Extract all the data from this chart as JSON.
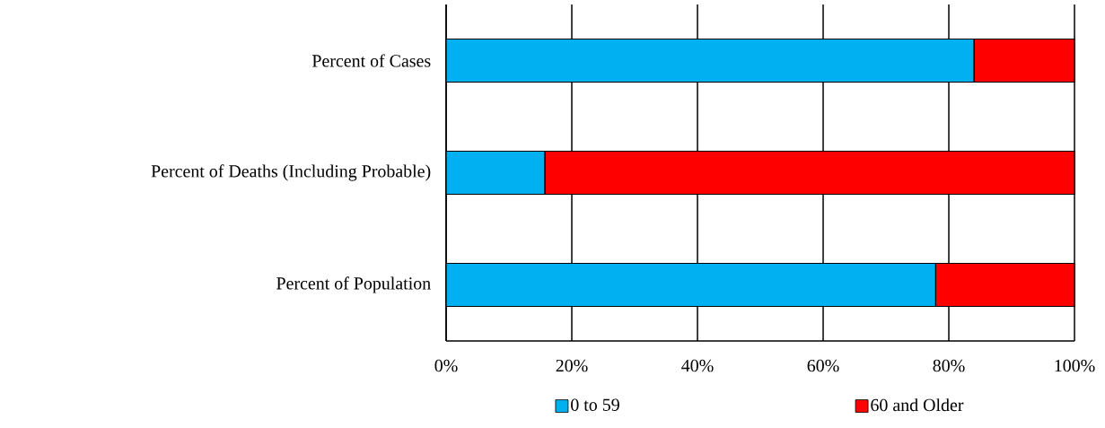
{
  "chart_data": {
    "type": "bar",
    "orientation": "horizontal",
    "stacked": true,
    "categories": [
      "Percent of Cases",
      "Percent of Deaths (Including Probable)",
      "Percent of Population"
    ],
    "series": [
      {
        "name": "0 to 59",
        "color": "#00b0f0",
        "values": [
          84.0,
          15.7,
          77.9
        ]
      },
      {
        "name": "60 and Older",
        "color": "#ff0000",
        "values": [
          16.0,
          84.3,
          22.1
        ]
      }
    ],
    "xlim": [
      0,
      100
    ],
    "xticks": [
      {
        "value": 0,
        "label": "0%"
      },
      {
        "value": 20,
        "label": "20%"
      },
      {
        "value": 40,
        "label": "40%"
      },
      {
        "value": 60,
        "label": "60%"
      },
      {
        "value": 80,
        "label": "80%"
      },
      {
        "value": 100,
        "label": "100%"
      }
    ],
    "grid": "x",
    "legend": "bottom"
  }
}
